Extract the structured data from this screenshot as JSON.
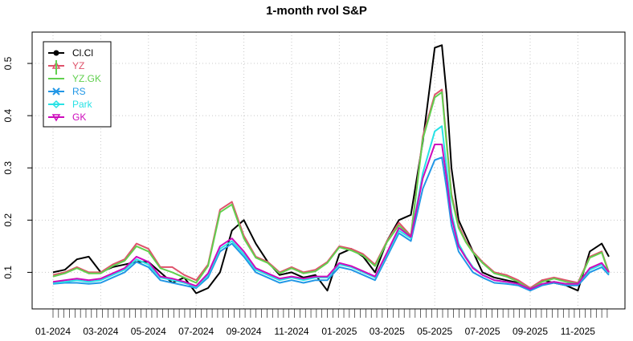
{
  "chart_data": {
    "type": "line",
    "title": "1-month rvol S&P",
    "xlabel": "",
    "ylabel": "",
    "ylim": [
      0.03,
      0.56
    ],
    "y_ticks": [
      0.1,
      0.2,
      0.3,
      0.4,
      0.5
    ],
    "y_tick_labels": [
      "0.1",
      "0.2",
      "0.3",
      "0.4",
      "0.5"
    ],
    "x_tick_labels": [
      "01-2024",
      "03-2024",
      "05-2024",
      "07-2024",
      "09-2024",
      "11-2024",
      "01-2025",
      "03-2025",
      "05-2025",
      "07-2025",
      "09-2025",
      "11-2025"
    ],
    "x_range_months": [
      0,
      23.3
    ],
    "grid": true,
    "legend_position": "top-left",
    "colors": {
      "Cl.Cl": "#000000",
      "YZ": "#df536b",
      "YZ.GK": "#61d04f",
      "RS": "#2297e6",
      "Park": "#28e2e5",
      "GK": "#cd0bbc"
    },
    "series": [
      {
        "name": "Cl.Cl",
        "x": [
          0.0,
          0.5,
          1.0,
          1.5,
          2.0,
          2.5,
          3.0,
          3.5,
          4.0,
          4.5,
          5.0,
          5.5,
          6.0,
          6.5,
          7.0,
          7.5,
          8.0,
          8.5,
          9.0,
          9.5,
          10.0,
          10.5,
          11.0,
          11.5,
          12.0,
          12.5,
          13.0,
          13.5,
          14.0,
          14.5,
          15.0,
          15.5,
          16.0,
          16.3,
          16.5,
          16.7,
          17.0,
          17.3,
          17.6,
          18.0,
          18.5,
          19.0,
          19.5,
          20.0,
          20.5,
          21.0,
          21.5,
          22.0,
          22.5,
          23.0,
          23.3
        ],
        "values": [
          0.1,
          0.105,
          0.125,
          0.13,
          0.1,
          0.11,
          0.115,
          0.12,
          0.12,
          0.1,
          0.08,
          0.09,
          0.06,
          0.07,
          0.1,
          0.18,
          0.2,
          0.155,
          0.12,
          0.095,
          0.1,
          0.09,
          0.095,
          0.065,
          0.135,
          0.145,
          0.13,
          0.1,
          0.16,
          0.2,
          0.21,
          0.35,
          0.53,
          0.535,
          0.44,
          0.3,
          0.2,
          0.17,
          0.14,
          0.1,
          0.09,
          0.085,
          0.08,
          0.065,
          0.085,
          0.08,
          0.075,
          0.065,
          0.14,
          0.155,
          0.13
        ]
      },
      {
        "name": "YZ",
        "x": [
          0.0,
          0.5,
          1.0,
          1.5,
          2.0,
          2.5,
          3.0,
          3.5,
          4.0,
          4.5,
          5.0,
          5.5,
          6.0,
          6.5,
          7.0,
          7.5,
          8.0,
          8.5,
          9.0,
          9.5,
          10.0,
          10.5,
          11.0,
          11.5,
          12.0,
          12.5,
          13.0,
          13.5,
          14.0,
          14.5,
          15.0,
          15.5,
          16.0,
          16.3,
          16.5,
          16.7,
          17.0,
          17.3,
          17.6,
          18.0,
          18.5,
          19.0,
          19.5,
          20.0,
          20.5,
          21.0,
          21.5,
          22.0,
          22.5,
          23.0,
          23.3
        ],
        "values": [
          0.095,
          0.1,
          0.11,
          0.1,
          0.1,
          0.115,
          0.125,
          0.155,
          0.145,
          0.11,
          0.11,
          0.095,
          0.085,
          0.115,
          0.22,
          0.235,
          0.17,
          0.13,
          0.12,
          0.1,
          0.11,
          0.1,
          0.105,
          0.12,
          0.15,
          0.145,
          0.135,
          0.115,
          0.16,
          0.195,
          0.17,
          0.36,
          0.44,
          0.45,
          0.35,
          0.25,
          0.19,
          0.16,
          0.14,
          0.12,
          0.1,
          0.095,
          0.085,
          0.07,
          0.085,
          0.09,
          0.085,
          0.08,
          0.13,
          0.14,
          0.1
        ]
      },
      {
        "name": "YZ.GK",
        "x": [
          0.0,
          0.5,
          1.0,
          1.5,
          2.0,
          2.5,
          3.0,
          3.5,
          4.0,
          4.5,
          5.0,
          5.5,
          6.0,
          6.5,
          7.0,
          7.5,
          8.0,
          8.5,
          9.0,
          9.5,
          10.0,
          10.5,
          11.0,
          11.5,
          12.0,
          12.5,
          13.0,
          13.5,
          14.0,
          14.5,
          15.0,
          15.5,
          16.0,
          16.3,
          16.5,
          16.7,
          17.0,
          17.3,
          17.6,
          18.0,
          18.5,
          19.0,
          19.5,
          20.0,
          20.5,
          21.0,
          21.5,
          22.0,
          22.5,
          23.0,
          23.3
        ],
        "values": [
          0.092,
          0.098,
          0.108,
          0.098,
          0.098,
          0.112,
          0.122,
          0.15,
          0.14,
          0.108,
          0.1,
          0.09,
          0.08,
          0.112,
          0.215,
          0.23,
          0.165,
          0.128,
          0.118,
          0.098,
          0.108,
          0.098,
          0.102,
          0.118,
          0.148,
          0.142,
          0.132,
          0.112,
          0.158,
          0.19,
          0.168,
          0.355,
          0.435,
          0.445,
          0.345,
          0.245,
          0.185,
          0.158,
          0.138,
          0.118,
          0.098,
          0.092,
          0.082,
          0.068,
          0.082,
          0.088,
          0.082,
          0.078,
          0.128,
          0.138,
          0.098
        ]
      },
      {
        "name": "RS",
        "x": [
          0.0,
          0.5,
          1.0,
          1.5,
          2.0,
          2.5,
          3.0,
          3.5,
          4.0,
          4.5,
          5.0,
          5.5,
          6.0,
          6.5,
          7.0,
          7.5,
          8.0,
          8.5,
          9.0,
          9.5,
          10.0,
          10.5,
          11.0,
          11.5,
          12.0,
          12.5,
          13.0,
          13.5,
          14.0,
          14.5,
          15.0,
          15.5,
          16.0,
          16.3,
          16.5,
          16.7,
          17.0,
          17.3,
          17.6,
          18.0,
          18.5,
          19.0,
          19.5,
          20.0,
          20.5,
          21.0,
          21.5,
          22.0,
          22.5,
          23.0,
          23.3
        ],
        "values": [
          0.078,
          0.08,
          0.08,
          0.078,
          0.08,
          0.09,
          0.1,
          0.12,
          0.11,
          0.085,
          0.08,
          0.075,
          0.07,
          0.09,
          0.14,
          0.155,
          0.13,
          0.1,
          0.09,
          0.08,
          0.085,
          0.08,
          0.085,
          0.085,
          0.11,
          0.105,
          0.095,
          0.085,
          0.13,
          0.175,
          0.16,
          0.26,
          0.315,
          0.32,
          0.26,
          0.19,
          0.14,
          0.12,
          0.1,
          0.09,
          0.08,
          0.078,
          0.075,
          0.065,
          0.075,
          0.08,
          0.075,
          0.075,
          0.1,
          0.11,
          0.095
        ]
      },
      {
        "name": "Park",
        "x": [
          0.0,
          0.5,
          1.0,
          1.5,
          2.0,
          2.5,
          3.0,
          3.5,
          4.0,
          4.5,
          5.0,
          5.5,
          6.0,
          6.5,
          7.0,
          7.5,
          8.0,
          8.5,
          9.0,
          9.5,
          10.0,
          10.5,
          11.0,
          11.5,
          12.0,
          12.5,
          13.0,
          13.5,
          14.0,
          14.5,
          15.0,
          15.5,
          16.0,
          16.3,
          16.5,
          16.7,
          17.0,
          17.3,
          17.6,
          18.0,
          18.5,
          19.0,
          19.5,
          20.0,
          20.5,
          21.0,
          21.5,
          22.0,
          22.5,
          23.0,
          23.3
        ],
        "values": [
          0.08,
          0.082,
          0.085,
          0.082,
          0.085,
          0.095,
          0.105,
          0.125,
          0.115,
          0.09,
          0.085,
          0.08,
          0.072,
          0.095,
          0.145,
          0.16,
          0.135,
          0.105,
          0.095,
          0.085,
          0.09,
          0.085,
          0.09,
          0.09,
          0.115,
          0.11,
          0.1,
          0.09,
          0.135,
          0.18,
          0.165,
          0.29,
          0.37,
          0.38,
          0.3,
          0.215,
          0.155,
          0.13,
          0.11,
          0.095,
          0.085,
          0.082,
          0.078,
          0.068,
          0.078,
          0.082,
          0.078,
          0.078,
          0.105,
          0.115,
          0.098
        ]
      },
      {
        "name": "GK",
        "x": [
          0.0,
          0.5,
          1.0,
          1.5,
          2.0,
          2.5,
          3.0,
          3.5,
          4.0,
          4.5,
          5.0,
          5.5,
          6.0,
          6.5,
          7.0,
          7.5,
          8.0,
          8.5,
          9.0,
          9.5,
          10.0,
          10.5,
          11.0,
          11.5,
          12.0,
          12.5,
          13.0,
          13.5,
          14.0,
          14.5,
          15.0,
          15.5,
          16.0,
          16.3,
          16.5,
          16.7,
          17.0,
          17.3,
          17.6,
          18.0,
          18.5,
          19.0,
          19.5,
          20.0,
          20.5,
          21.0,
          21.5,
          22.0,
          22.5,
          23.0,
          23.3
        ],
        "values": [
          0.082,
          0.085,
          0.088,
          0.085,
          0.088,
          0.098,
          0.108,
          0.13,
          0.12,
          0.092,
          0.088,
          0.082,
          0.074,
          0.098,
          0.15,
          0.165,
          0.14,
          0.108,
          0.098,
          0.088,
          0.092,
          0.088,
          0.092,
          0.092,
          0.118,
          0.112,
          0.102,
          0.092,
          0.138,
          0.185,
          0.168,
          0.28,
          0.345,
          0.345,
          0.28,
          0.205,
          0.15,
          0.128,
          0.108,
          0.095,
          0.085,
          0.082,
          0.078,
          0.068,
          0.078,
          0.082,
          0.078,
          0.078,
          0.108,
          0.118,
          0.1
        ]
      }
    ]
  }
}
